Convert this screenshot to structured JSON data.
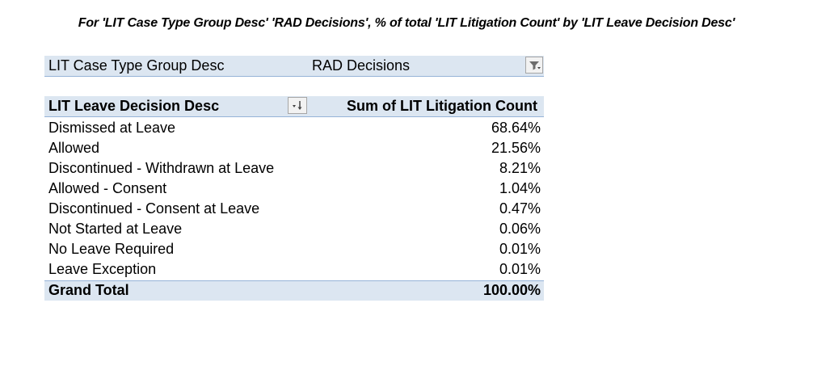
{
  "title": "For 'LIT Case Type Group Desc' 'RAD Decisions', % of total 'LIT Litigation Count' by 'LIT Leave Decision Desc'",
  "filter": {
    "field": "LIT Case Type Group Desc",
    "value": "RAD Decisions",
    "icon": "filter-dropdown-icon"
  },
  "pivot": {
    "row_header": "LIT Leave Decision Desc",
    "value_header": "Sum of LIT Litigation Count",
    "sort_icon": "sort-descending-icon",
    "rows": [
      {
        "label": "Dismissed at Leave",
        "value": "68.64%"
      },
      {
        "label": "Allowed",
        "value": "21.56%"
      },
      {
        "label": "Discontinued - Withdrawn at Leave",
        "value": "8.21%"
      },
      {
        "label": "Allowed - Consent",
        "value": "1.04%"
      },
      {
        "label": "Discontinued - Consent at Leave",
        "value": "0.47%"
      },
      {
        "label": "Not Started at Leave",
        "value": "0.06%"
      },
      {
        "label": "No Leave Required",
        "value": "0.01%"
      },
      {
        "label": "Leave Exception",
        "value": "0.01%"
      }
    ],
    "total": {
      "label": "Grand Total",
      "value": "100.00%"
    }
  },
  "colors": {
    "header_fill": "#dce6f1",
    "header_border": "#95b3d7"
  }
}
